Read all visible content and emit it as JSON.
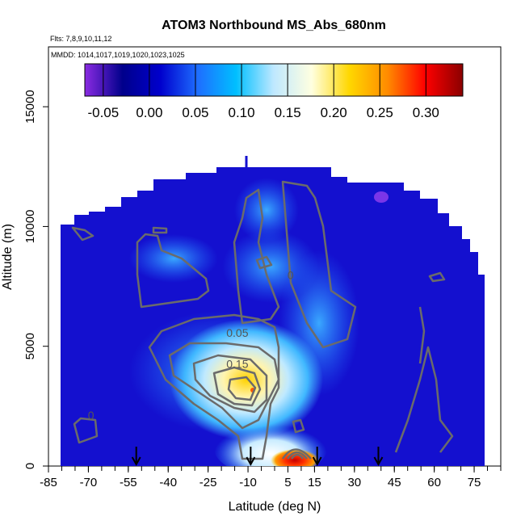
{
  "chart_data": {
    "type": "heatmap",
    "title": "ATOM3 Northbound MS_Abs_680nm",
    "flights_label": "Flts: 7,8,9,10,11,12",
    "dates_label": "MMDD: 1014,1017,1019,1020,1023,1025",
    "xlabel": "Latitude (deg N)",
    "ylabel": "Altitude (m)",
    "xlim": [
      -85,
      85
    ],
    "ylim": [
      0,
      17500
    ],
    "x_ticks": [
      -85,
      -70,
      -55,
      -40,
      -25,
      -10,
      5,
      15,
      30,
      45,
      60,
      75
    ],
    "x_tick_labels": [
      "-85",
      "-70",
      "-55",
      "-40",
      "-25",
      "-10",
      "5",
      "15",
      "30",
      "45",
      "60",
      "75"
    ],
    "y_ticks": [
      0,
      5000,
      10000,
      15000
    ],
    "y_tick_labels": [
      "0",
      "5000",
      "10000",
      "15000"
    ],
    "colorbar": {
      "min": -0.07,
      "max": 0.34,
      "ticks": [
        -0.05,
        0.0,
        0.05,
        0.1,
        0.15,
        0.2,
        0.25,
        0.3
      ],
      "tick_labels": [
        "-0.05",
        "0.00",
        "0.05",
        "0.10",
        "0.15",
        "0.20",
        "0.25",
        "0.30"
      ],
      "colors": [
        "#8a2be2",
        "#00008b",
        "#0000cd",
        "#1e6fff",
        "#00bfff",
        "#bfe8ff",
        "#ffffe0",
        "#ffd700",
        "#ff8c00",
        "#ff0000",
        "#8b0000"
      ]
    },
    "contour_labels": [
      {
        "text": "0.05",
        "x": -14,
        "y": 5400
      },
      {
        "text": "0.15",
        "x": -14,
        "y": 4100
      },
      {
        "text": "0",
        "x": -69,
        "y": 1950
      },
      {
        "text": "0",
        "x": 6,
        "y": 7800
      }
    ],
    "profile_arrows_lat": [
      -52,
      -9,
      16,
      39
    ],
    "hotspots": [
      {
        "lat": -12,
        "alt": 3300,
        "value": 0.22
      },
      {
        "lat": 8,
        "alt": 150,
        "value": 0.32
      },
      {
        "lat": 42,
        "alt": 11600,
        "value": -0.06
      }
    ]
  }
}
